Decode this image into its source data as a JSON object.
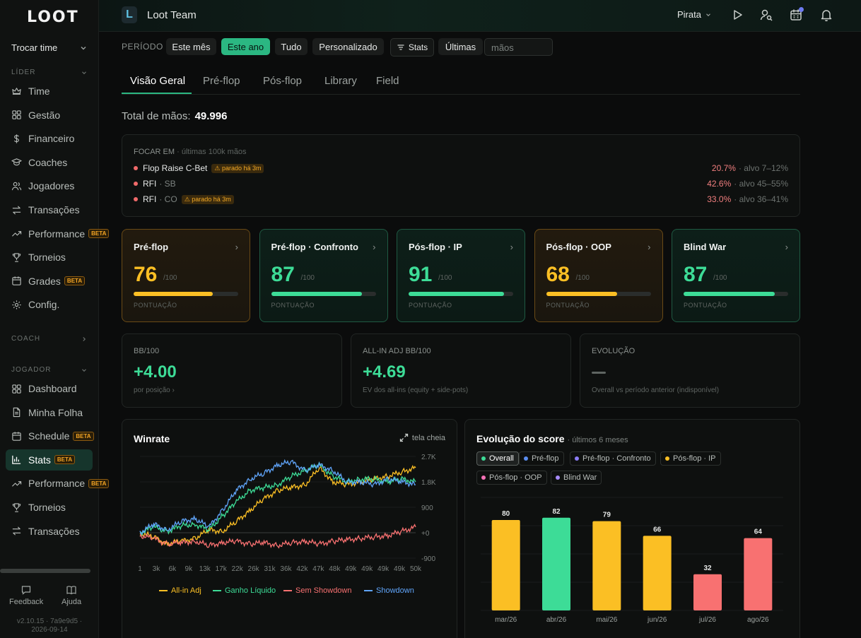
{
  "sidebar": {
    "logo": "LOOT",
    "team_switch": "Trocar time",
    "sections": {
      "lider": "LÍDER",
      "coach": "COACH",
      "jogador": "JOGADOR"
    },
    "lider_items": [
      {
        "label": "Time",
        "icon": "crown-icon"
      },
      {
        "label": "Gestão",
        "icon": "grid-icon"
      },
      {
        "label": "Financeiro",
        "icon": "dollar-icon"
      },
      {
        "label": "Coaches",
        "icon": "graduation-cap-icon"
      },
      {
        "label": "Jogadores",
        "icon": "users-icon"
      },
      {
        "label": "Transações",
        "icon": "transfer-icon"
      },
      {
        "label": "Performance",
        "icon": "trend-up-icon",
        "badge": "BETA"
      },
      {
        "label": "Torneios",
        "icon": "trophy-icon"
      },
      {
        "label": "Grades",
        "icon": "calendar-icon",
        "badge": "BETA"
      },
      {
        "label": "Config.",
        "icon": "gear-icon"
      }
    ],
    "jogador_items": [
      {
        "label": "Dashboard",
        "icon": "grid-icon"
      },
      {
        "label": "Minha Folha",
        "icon": "document-icon"
      },
      {
        "label": "Schedule",
        "icon": "calendar-icon",
        "badge": "BETA"
      },
      {
        "label": "Stats",
        "icon": "bar-chart-icon",
        "badge": "BETA",
        "active": true
      },
      {
        "label": "Performance",
        "icon": "trend-up-icon",
        "badge": "BETA"
      },
      {
        "label": "Torneios",
        "icon": "trophy-icon"
      },
      {
        "label": "Transações",
        "icon": "transfer-icon"
      }
    ],
    "footer": {
      "feedback": "Feedback",
      "help": "Ajuda",
      "version": "v2.10.15 · 7a9e9d5 ·",
      "date": "2026-09-14"
    }
  },
  "header": {
    "team_initial": "L",
    "team_name": "Loot Team",
    "user": "Pirata"
  },
  "filters": {
    "label": "PERÍODO",
    "buttons": [
      "Este mês",
      "Este ano",
      "Tudo",
      "Personalizado"
    ],
    "active": "Este ano",
    "stats_button": "Stats",
    "last_label": "Últimas",
    "hands_placeholder": "mãos"
  },
  "tabs": [
    "Visão Geral",
    "Pré-flop",
    "Pós-flop",
    "Library",
    "Field"
  ],
  "active_tab": "Visão Geral",
  "total": {
    "label": "Total de mãos:",
    "value": "49.996"
  },
  "focus": {
    "title": "FOCAR EM",
    "subtitle": "· últimas 100k mãos",
    "items": [
      {
        "name": "Flop Raise C-Bet",
        "sub": "",
        "warn": "⚠ parado há 3m",
        "value": "20.7%",
        "target": "· alvo 7–12%"
      },
      {
        "name": "RFI",
        "sub": "· SB",
        "warn": "",
        "value": "42.6%",
        "target": "· alvo 45–55%"
      },
      {
        "name": "RFI",
        "sub": "· CO",
        "warn": "⚠ parado há 3m",
        "value": "33.0%",
        "target": "· alvo 36–41%"
      }
    ]
  },
  "scores": [
    {
      "title": "Pré-flop",
      "value": "76",
      "den": "/100",
      "label": "PONTUAÇÃO",
      "progress": 0.76,
      "tone": "amber"
    },
    {
      "title": "Pré-flop · Confronto",
      "value": "87",
      "den": "/100",
      "label": "PONTUAÇÃO",
      "progress": 0.87,
      "tone": "green"
    },
    {
      "title": "Pós-flop · IP",
      "value": "91",
      "den": "/100",
      "label": "PONTUAÇÃO",
      "progress": 0.91,
      "tone": "green"
    },
    {
      "title": "Pós-flop · OOP",
      "value": "68",
      "den": "/100",
      "label": "PONTUAÇÃO",
      "progress": 0.68,
      "tone": "amber"
    },
    {
      "title": "Blind War",
      "value": "87",
      "den": "/100",
      "label": "PONTUAÇÃO",
      "progress": 0.87,
      "tone": "green"
    }
  ],
  "stats": [
    {
      "label": "BB/100",
      "value": "+4.00",
      "sub": "por posição ›"
    },
    {
      "label": "ALL-IN ADJ BB/100",
      "value": "+4.69",
      "sub": "EV dos all-ins (equity + side-pots)"
    },
    {
      "label": "EVOLUÇÃO",
      "value": "",
      "sub": "Overall vs período anterior (indisponível)"
    }
  ],
  "winrate": {
    "title": "Winrate",
    "fullscreen": "tela cheia"
  },
  "score_evolution": {
    "title": "Evolução do score",
    "subtitle": "· últimos 6 meses",
    "chips": [
      {
        "label": "Overall",
        "color": "#3ddc97",
        "on": true
      },
      {
        "label": "Pré-flop",
        "color": "#5b8def",
        "on": false
      },
      {
        "label": "Pré-flop · Confronto",
        "color": "#8b7cf6",
        "on": false
      },
      {
        "label": "Pós-flop · IP",
        "color": "#fbbf24",
        "on": false
      },
      {
        "label": "Pós-flop · OOP",
        "color": "#f472b6",
        "on": false
      },
      {
        "label": "Blind War",
        "color": "#a78bfa",
        "on": false
      }
    ]
  },
  "colors": {
    "accent": "#2bb782",
    "green": "#3ddc97",
    "amber": "#fbbf24",
    "red": "#f87171",
    "blue": "#60a5fa"
  },
  "chart_data": [
    {
      "type": "line",
      "title": "Winrate",
      "x_ticks": [
        "1",
        "3k",
        "6k",
        "9k",
        "13k",
        "17k",
        "22k",
        "26k",
        "31k",
        "36k",
        "42k",
        "47k",
        "48k",
        "49k",
        "49k",
        "49k",
        "49k",
        "50k"
      ],
      "y_ticks": [
        "2.7K",
        "1.8K",
        "900",
        "+0",
        "-900"
      ],
      "ylim": [
        -900,
        2700
      ],
      "x": [
        0,
        2500,
        5000,
        7500,
        10000,
        12500,
        15000,
        17500,
        20000,
        22500,
        25000,
        27500,
        30000,
        32500,
        35000,
        37500,
        40000,
        42500,
        45000,
        47500,
        50000
      ],
      "series": [
        {
          "name": "All-in Adj",
          "color": "#fbbf24",
          "values": [
            0,
            -150,
            -400,
            -300,
            -200,
            100,
            50,
            400,
            800,
            1200,
            1500,
            1600,
            1700,
            2300,
            1800,
            1700,
            1800,
            1900,
            2000,
            2150,
            2300
          ]
        },
        {
          "name": "Ganho Líquido",
          "color": "#3ddc97",
          "values": [
            0,
            200,
            50,
            250,
            300,
            100,
            600,
            1100,
            1500,
            1600,
            1700,
            2000,
            2200,
            2400,
            2000,
            1800,
            1900,
            1900,
            1800,
            1900,
            1800
          ]
        },
        {
          "name": "Sem Showdown",
          "color": "#f87171",
          "values": [
            -100,
            -200,
            -400,
            -350,
            -300,
            -450,
            -350,
            -300,
            -400,
            -350,
            -450,
            -350,
            -300,
            -400,
            -300,
            -250,
            -200,
            -150,
            -100,
            50,
            200
          ]
        },
        {
          "name": "Showdown",
          "color": "#60a5fa",
          "values": [
            0,
            300,
            100,
            400,
            500,
            200,
            800,
            1500,
            1900,
            2100,
            2400,
            2500,
            2200,
            2400,
            2200,
            1800,
            1800,
            1700,
            1900,
            1800,
            1700
          ]
        }
      ]
    },
    {
      "type": "bar",
      "title": "Evolução do score",
      "categories": [
        "mar/26",
        "abr/26",
        "mai/26",
        "jun/26",
        "jul/26",
        "ago/26"
      ],
      "values": [
        80,
        82,
        79,
        66,
        32,
        64
      ],
      "colors": [
        "#fbbf24",
        "#3ddc97",
        "#fbbf24",
        "#fbbf24",
        "#f87171",
        "#f87171"
      ],
      "ylim": [
        0,
        100
      ]
    }
  ]
}
